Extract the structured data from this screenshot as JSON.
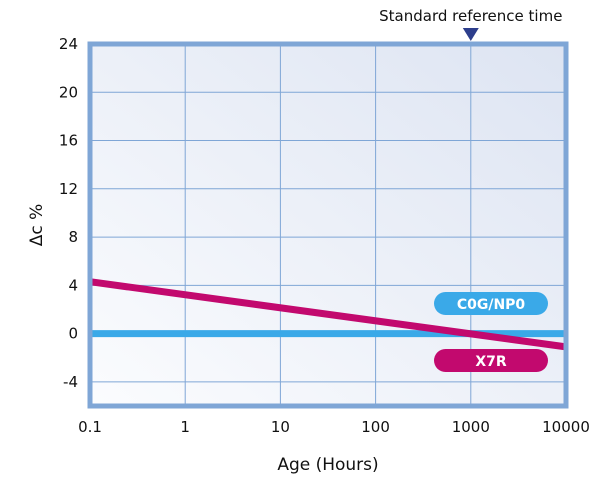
{
  "chart_data": {
    "type": "line",
    "xlabel": "Age (Hours)",
    "ylabel": "Δc %",
    "xscale": "log",
    "xlim": [
      0.1,
      10000
    ],
    "ylim": [
      -6,
      24
    ],
    "x_ticks": [
      0.1,
      1,
      10,
      100,
      1000,
      10000
    ],
    "x_tick_labels": [
      "0.1",
      "1",
      "10",
      "100",
      "1000",
      "10000"
    ],
    "y_ticks": [
      -4,
      0,
      4,
      8,
      12,
      16,
      20,
      24
    ],
    "y_tick_labels": [
      "-4",
      "0",
      "4",
      "8",
      "12",
      "16",
      "20",
      "24"
    ],
    "grid": true,
    "legend_placement": "inline-right",
    "series": [
      {
        "name": "C0G/NP0",
        "color": "#3aa9e8",
        "x": [
          0.1,
          10000
        ],
        "y": [
          0,
          0
        ]
      },
      {
        "name": "X7R",
        "color": "#c2096e",
        "x": [
          0.1,
          10000
        ],
        "y": [
          4.3,
          -1.1
        ]
      }
    ],
    "annotation": {
      "text": "Standard reference time",
      "x": 1000,
      "marker": "down-triangle",
      "marker_color": "#2d3e8c"
    },
    "colors": {
      "frame": "#7fa6d6",
      "grid": "#7fa6d6",
      "plot_bg_from": "#fbfcfe",
      "plot_bg_to": "#dde4f2"
    }
  }
}
